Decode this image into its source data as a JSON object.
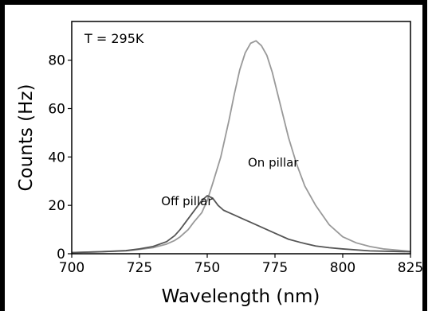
{
  "chart_data": {
    "type": "line",
    "title": "",
    "annotation": "T = 295K",
    "xlabel": "Wavelength (nm)",
    "ylabel": "Counts (Hz)",
    "xlim": [
      700,
      825
    ],
    "ylim": [
      0,
      96
    ],
    "xticks": [
      "700",
      "725",
      "750",
      "775",
      "800",
      "825"
    ],
    "yticks": [
      "0",
      "20",
      "40",
      "60",
      "80"
    ],
    "grid": false,
    "legend": "none",
    "series": [
      {
        "name": "On pillar",
        "color": "#999999",
        "x": [
          700,
          710,
          720,
          725,
          730,
          735,
          738,
          740,
          743,
          745,
          748,
          750,
          752,
          755,
          758,
          760,
          762,
          764,
          766,
          768,
          770,
          772,
          774,
          776,
          778,
          780,
          783,
          786,
          790,
          795,
          800,
          805,
          810,
          815,
          820,
          825
        ],
        "y": [
          0.5,
          0.8,
          1.2,
          1.8,
          2.5,
          4,
          5.5,
          7,
          10,
          13,
          17,
          22,
          29,
          40,
          55,
          66,
          76,
          83,
          87,
          88,
          86,
          82,
          75,
          66,
          57,
          48,
          37,
          28,
          20,
          12,
          7,
          4.5,
          3,
          2,
          1.5,
          1
        ]
      },
      {
        "name": "Off pillar",
        "color": "#555555",
        "x": [
          700,
          710,
          720,
          725,
          730,
          735,
          738,
          740,
          742,
          744,
          746,
          748,
          750,
          752,
          754,
          756,
          758,
          760,
          763,
          766,
          770,
          775,
          780,
          785,
          790,
          795,
          800,
          810,
          825
        ],
        "y": [
          0.5,
          0.8,
          1.3,
          2,
          3,
          5,
          7.5,
          10,
          13,
          16,
          19,
          22,
          24,
          23,
          20,
          18,
          17,
          16,
          14.5,
          13,
          11,
          8.5,
          6,
          4.5,
          3.2,
          2.5,
          2,
          1.2,
          0.8
        ]
      }
    ],
    "series_labels": [
      {
        "text": "On pillar",
        "x": 765,
        "y": 36
      },
      {
        "text": "Off pillar",
        "x": 733,
        "y": 20
      }
    ]
  }
}
